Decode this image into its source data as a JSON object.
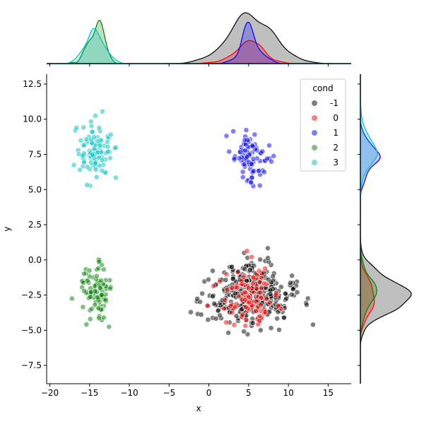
{
  "chart_data": {
    "type": "scatter",
    "subtype": "jointplot with marginal KDE",
    "xlabel": "x",
    "ylabel": "y",
    "xlim": [
      -20.4,
      17.9
    ],
    "ylim": [
      -8.8,
      13.2
    ],
    "xticks": [
      -20,
      -15,
      -10,
      -5,
      0,
      5,
      10,
      15
    ],
    "xtick_labels": [
      "−20",
      "−15",
      "−10",
      "−5",
      "0",
      "5",
      "10",
      "15"
    ],
    "yticks": [
      -7.5,
      -5,
      -2.5,
      0,
      2.5,
      5,
      7.5,
      10,
      12.5
    ],
    "ytick_labels": [
      "−7.5",
      "−5.0",
      "−2.5",
      "0.0",
      "2.5",
      "5.0",
      "7.5",
      "10.0",
      "12.5"
    ],
    "grid": false,
    "legend": {
      "title": "cond",
      "placement": "top-right",
      "entries": [
        "-1",
        "0",
        "1",
        "2",
        "3"
      ]
    },
    "series": [
      {
        "name": "-1",
        "color": "#000000",
        "count": 350,
        "center": [
          5.0,
          -2.5
        ],
        "spread": [
          2.8,
          1.1
        ]
      },
      {
        "name": "0",
        "color": "#ff0000",
        "count": 100,
        "center": [
          5.0,
          -2.6
        ],
        "spread": [
          1.8,
          1.1
        ]
      },
      {
        "name": "1",
        "color": "#0000ff",
        "count": 100,
        "center": [
          5.3,
          7.1
        ],
        "spread": [
          1.0,
          1.0
        ]
      },
      {
        "name": "2",
        "color": "#008000",
        "count": 100,
        "center": [
          -14.2,
          -2.3
        ],
        "spread": [
          1.0,
          1.0
        ]
      },
      {
        "name": "3",
        "color": "#00bfbf",
        "count": 100,
        "center": [
          -14.3,
          7.7
        ],
        "spread": [
          1.1,
          1.1
        ]
      }
    ]
  }
}
